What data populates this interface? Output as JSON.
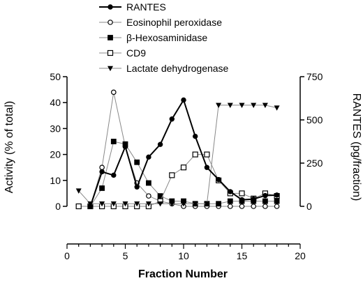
{
  "chart_data": {
    "type": "line",
    "x": [
      1,
      2,
      3,
      4,
      5,
      6,
      7,
      8,
      9,
      10,
      11,
      12,
      13,
      14,
      15,
      16,
      17,
      18
    ],
    "xlabel": "Fraction Number",
    "xlim": [
      0,
      20
    ],
    "xticks": [
      0,
      5,
      10,
      15,
      20
    ],
    "ylabel_left": "Activity (% of total)",
    "ylim_left": [
      0,
      50
    ],
    "yticks_left": [
      0,
      10,
      20,
      30,
      40,
      50
    ],
    "ylabel_right": "RANTES (pg/fraction)",
    "ylim_right": [
      0,
      750
    ],
    "yticks_right": [
      0,
      250,
      500,
      750
    ],
    "legend_position": "top",
    "grid": false,
    "series": [
      {
        "name": "RANTES",
        "axis": "right",
        "marker": "circle-filled",
        "stroke_width": 2,
        "color": "#000000",
        "x": [
          2,
          3,
          4,
          5,
          6,
          7,
          8,
          9,
          10,
          11,
          12,
          13,
          14,
          15,
          16,
          17,
          18
        ],
        "values": [
          0,
          200,
          180,
          345,
          112,
          285,
          358,
          505,
          615,
          405,
          225,
          155,
          85,
          38,
          42,
          62,
          65
        ]
      },
      {
        "name": "Eosinophil peroxidase",
        "axis": "left",
        "marker": "circle-open",
        "stroke_width": 1,
        "color": "#888888",
        "x": [
          1,
          2,
          3,
          4,
          5,
          6,
          7,
          8,
          9,
          10,
          11,
          12,
          13,
          14,
          15,
          16,
          17,
          18
        ],
        "values": [
          0,
          0,
          15,
          44,
          23,
          9,
          4,
          2,
          1,
          0,
          0,
          0,
          0,
          0,
          0,
          0,
          0,
          0
        ]
      },
      {
        "name": "β-Hexosaminidase",
        "axis": "left",
        "marker": "square-filled",
        "stroke_width": 1,
        "color": "#888888",
        "x": [
          1,
          2,
          3,
          4,
          5,
          6,
          7,
          8,
          9,
          10,
          11,
          12,
          13,
          14,
          15,
          16,
          17,
          18
        ],
        "values": [
          0,
          0,
          7,
          25,
          24,
          17,
          9,
          4,
          2,
          2,
          1,
          1,
          1,
          2,
          2,
          2,
          2,
          2
        ]
      },
      {
        "name": "CD9",
        "axis": "left",
        "marker": "square-open",
        "stroke_width": 1,
        "color": "#888888",
        "x": [
          1,
          2,
          3,
          4,
          5,
          6,
          7,
          8,
          9,
          10,
          11,
          12,
          13,
          14,
          15,
          16,
          17,
          18
        ],
        "values": [
          0,
          0,
          0,
          0,
          0,
          0,
          0,
          2,
          12,
          15,
          20,
          20,
          10,
          5,
          5,
          3,
          5,
          4
        ]
      },
      {
        "name": "Lactate dehydrogenase",
        "axis": "left",
        "marker": "triangle-down-filled",
        "stroke_width": 1,
        "color": "#888888",
        "x": [
          1,
          2,
          3,
          4,
          5,
          6,
          7,
          8,
          9,
          10,
          11,
          12,
          13,
          14,
          15,
          16,
          17,
          18
        ],
        "values": [
          6,
          1,
          1,
          1,
          1,
          1,
          1,
          1,
          1,
          1,
          1,
          1,
          39,
          39,
          39,
          39,
          39,
          38
        ]
      }
    ]
  }
}
